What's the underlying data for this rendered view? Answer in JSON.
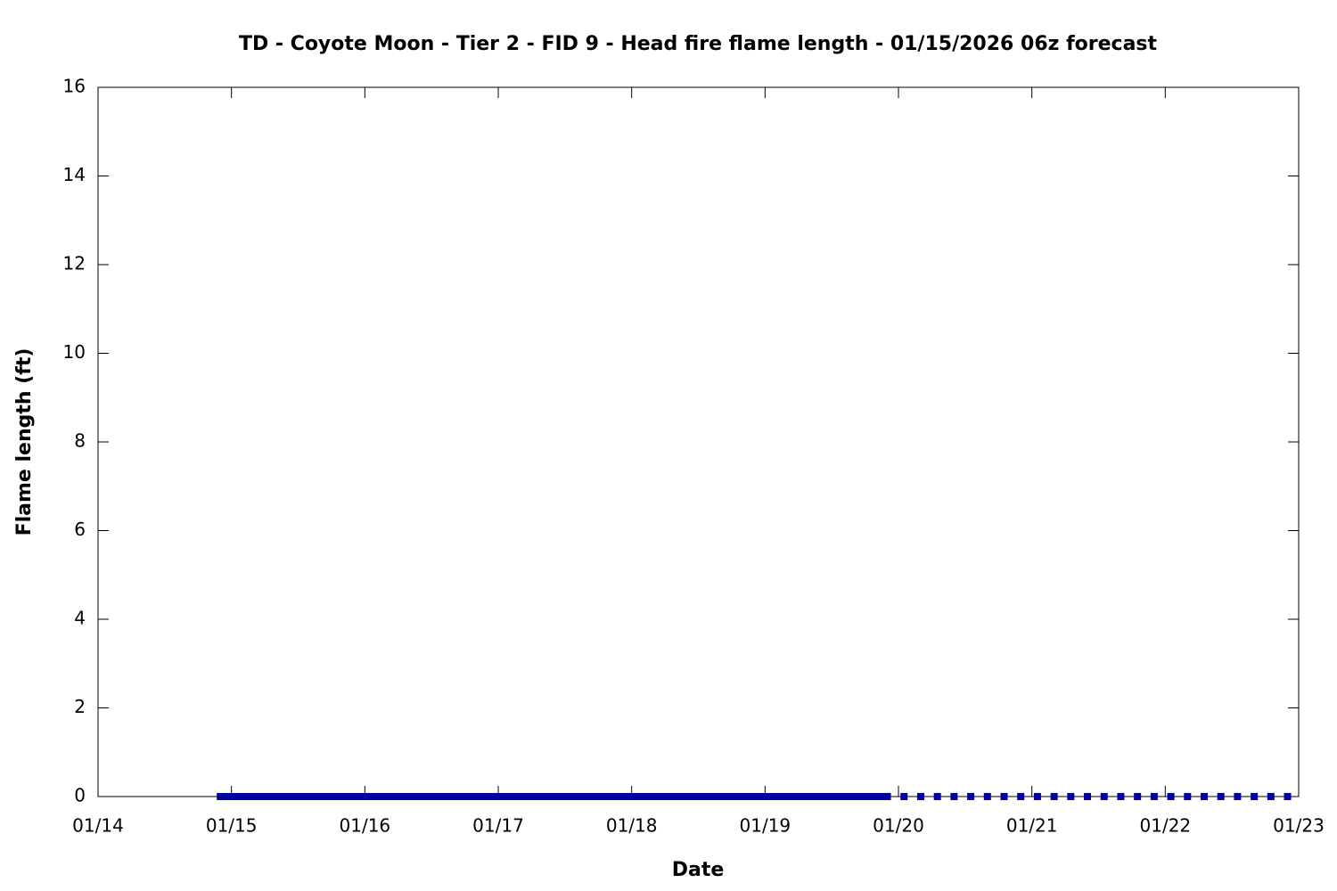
{
  "chart_data": {
    "type": "scatter",
    "title": "TD - Coyote Moon - Tier 2 - FID 9 - Head fire flame length - 01/15/2026 06z forecast",
    "x_label": "Date",
    "y_label": "Flame length (ft)",
    "xlim": [
      14,
      23
    ],
    "xticks": [
      {
        "value": 14,
        "label": "01/14"
      },
      {
        "value": 15,
        "label": "01/15"
      },
      {
        "value": 16,
        "label": "01/16"
      },
      {
        "value": 17,
        "label": "01/17"
      },
      {
        "value": 18,
        "label": "01/18"
      },
      {
        "value": 19,
        "label": "01/19"
      },
      {
        "value": 20,
        "label": "01/20"
      },
      {
        "value": 21,
        "label": "01/21"
      },
      {
        "value": 22,
        "label": "01/22"
      },
      {
        "value": 23,
        "label": "01/23"
      }
    ],
    "ylim": [
      0,
      16
    ],
    "yticks": [
      0,
      2,
      4,
      6,
      8,
      10,
      12,
      14,
      16
    ],
    "series": [
      {
        "color": "#0000a0",
        "x": [
          14.9167,
          14.9583,
          15,
          15.0417,
          15.0833,
          15.125,
          15.1667,
          15.2083,
          15.25,
          15.2917,
          15.3333,
          15.375,
          15.4167,
          15.4583,
          15.5,
          15.5417,
          15.5833,
          15.625,
          15.6667,
          15.7083,
          15.75,
          15.7917,
          15.8333,
          15.875,
          15.9167,
          15.9583,
          16,
          16.0417,
          16.0833,
          16.125,
          16.1667,
          16.2083,
          16.25,
          16.2917,
          16.3333,
          16.375,
          16.4167,
          16.4583,
          16.5,
          16.5417,
          16.5833,
          16.625,
          16.6667,
          16.7083,
          16.75,
          16.7917,
          16.8333,
          16.875,
          16.9167,
          16.9583,
          17,
          17.0417,
          17.0833,
          17.125,
          17.1667,
          17.2083,
          17.25,
          17.2917,
          17.3333,
          17.375,
          17.4167,
          17.4583,
          17.5,
          17.5417,
          17.5833,
          17.625,
          17.6667,
          17.7083,
          17.75,
          17.7917,
          17.8333,
          17.875,
          17.9167,
          17.9583,
          18,
          18.0417,
          18.0833,
          18.125,
          18.1667,
          18.2083,
          18.25,
          18.2917,
          18.3333,
          18.375,
          18.4167,
          18.4583,
          18.5,
          18.5417,
          18.5833,
          18.625,
          18.6667,
          18.7083,
          18.75,
          18.7917,
          18.8333,
          18.875,
          18.9167,
          18.9583,
          19,
          19.0417,
          19.0833,
          19.125,
          19.1667,
          19.2083,
          19.25,
          19.2917,
          19.3333,
          19.375,
          19.4167,
          19.4583,
          19.5,
          19.5417,
          19.5833,
          19.625,
          19.6667,
          19.7083,
          19.75,
          19.7917,
          19.8333,
          19.875,
          19.9167
        ],
        "values": [
          0,
          0,
          0,
          0,
          0,
          0,
          0,
          0,
          0,
          0,
          0,
          0,
          0,
          0,
          0,
          0,
          0,
          0,
          0,
          0,
          0,
          0,
          0,
          0,
          0,
          0,
          0,
          0,
          0,
          0,
          0,
          0,
          0,
          0,
          0,
          0,
          0,
          0,
          0,
          0,
          0,
          0,
          0,
          0,
          0,
          0,
          0,
          0,
          0,
          0,
          0,
          0,
          0,
          0,
          0,
          0,
          0,
          0,
          0,
          0,
          0,
          0,
          0,
          0,
          0,
          0,
          0,
          0,
          0,
          0,
          0,
          0,
          0,
          0,
          0,
          0,
          0,
          0,
          0,
          0,
          0,
          0,
          0,
          0,
          0,
          0,
          0,
          0,
          0,
          0,
          0,
          0,
          0,
          0,
          0,
          0,
          0,
          0,
          0,
          0,
          0,
          0,
          0,
          0,
          0,
          0,
          0,
          0,
          0,
          0,
          0,
          0,
          0,
          0,
          0,
          0,
          0,
          0,
          0,
          0,
          0
        ]
      },
      {
        "color": "#0000a0",
        "x": [
          20.0417,
          20.1667,
          20.2917,
          20.4167,
          20.5417,
          20.6667,
          20.7917,
          20.9167,
          21.0417,
          21.1667,
          21.2917,
          21.4167,
          21.5417,
          21.6667,
          21.7917,
          21.9167,
          22.0417,
          22.1667,
          22.2917,
          22.4167,
          22.5417,
          22.6667,
          22.7917,
          22.9167
        ],
        "values": [
          0,
          0,
          0,
          0,
          0,
          0,
          0,
          0,
          0,
          0,
          0,
          0,
          0,
          0,
          0,
          0,
          0,
          0,
          0,
          0,
          0,
          0,
          0,
          0
        ]
      }
    ]
  }
}
